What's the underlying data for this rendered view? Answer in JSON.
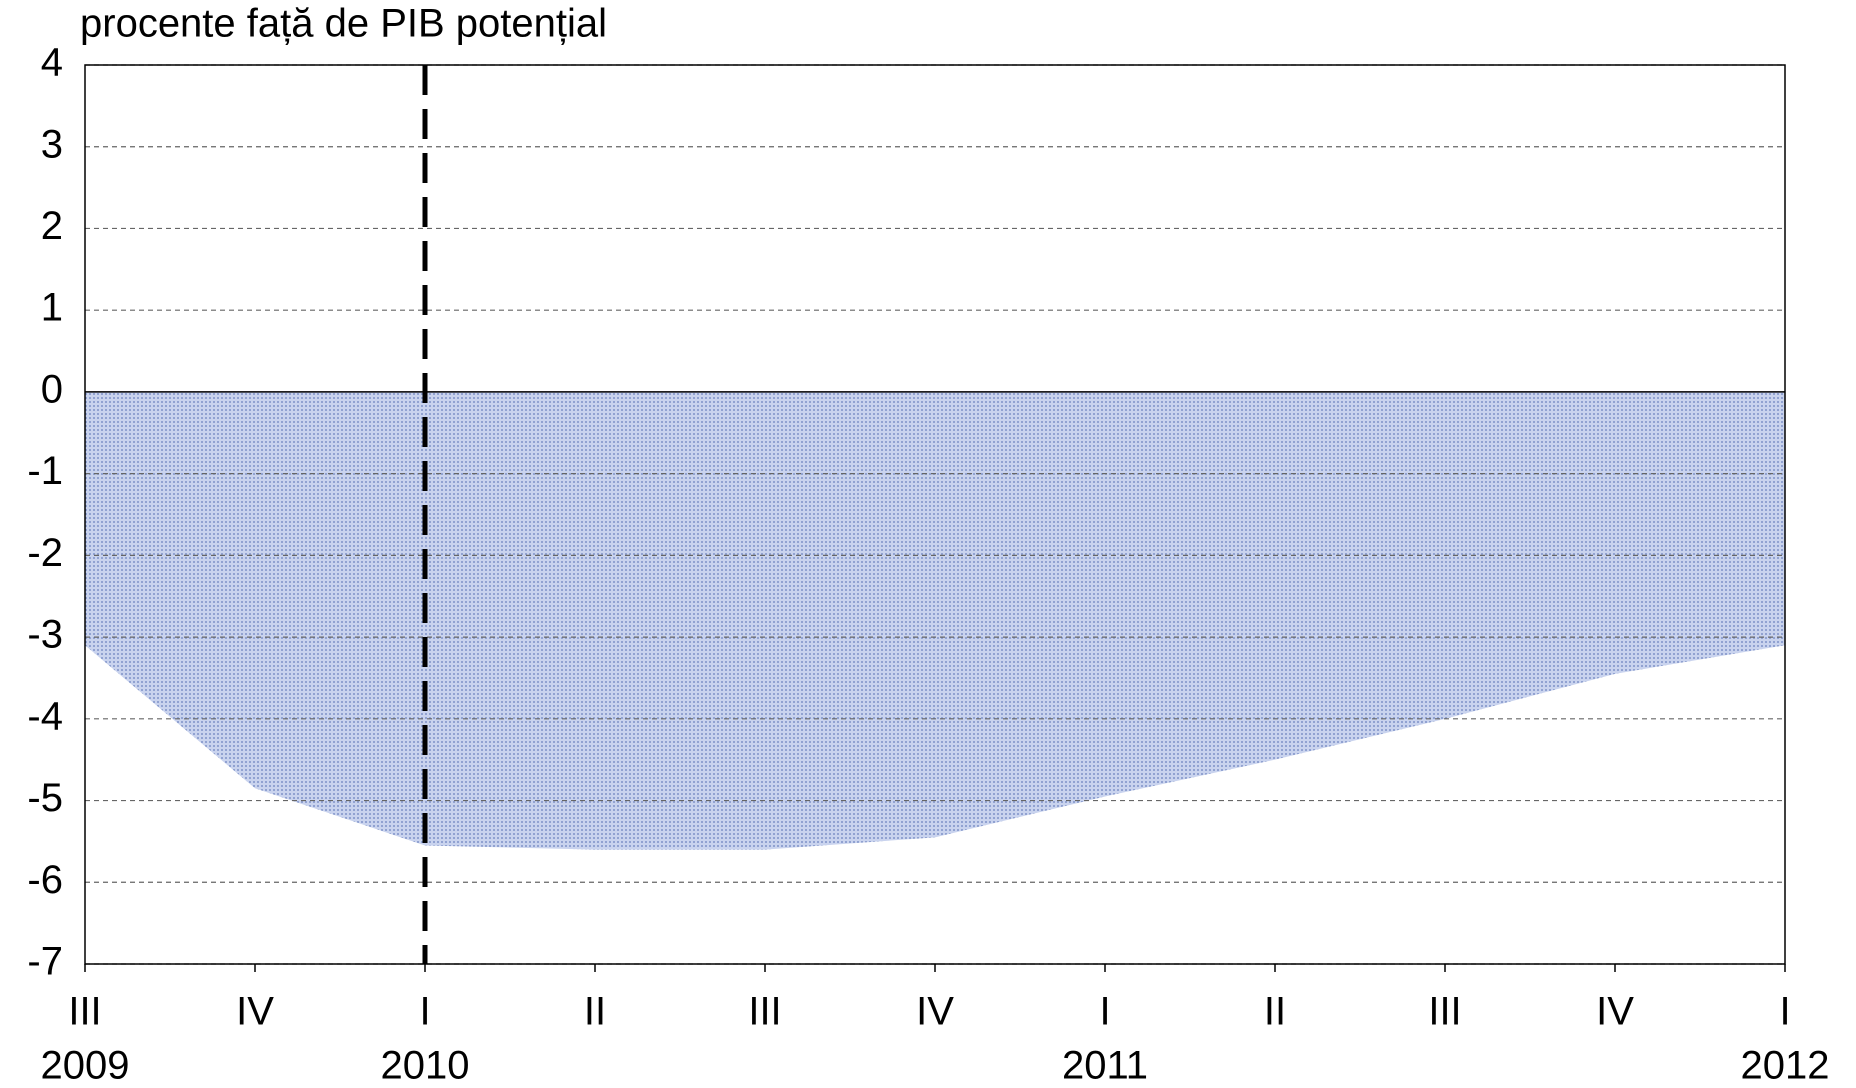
{
  "chart_data": {
    "type": "area",
    "title": "procente față de PIB potențial",
    "categories": [
      "III",
      "IV",
      "I",
      "II",
      "III",
      "IV",
      "I",
      "II",
      "III",
      "IV",
      "I"
    ],
    "years": [
      "2009",
      null,
      "2010",
      null,
      null,
      null,
      "2011",
      null,
      null,
      null,
      "2012"
    ],
    "values": [
      -3.1,
      -4.85,
      -5.55,
      -5.6,
      -5.6,
      -5.45,
      -4.95,
      -4.5,
      -4.0,
      -3.45,
      -3.1
    ],
    "color": "#9fb0da",
    "ylim": [
      -7,
      4
    ],
    "yticks": [
      -7,
      -6,
      -5,
      -4,
      -3,
      -2,
      -1,
      0,
      1,
      2,
      3,
      4
    ],
    "grid": true,
    "vline_at": 2
  }
}
